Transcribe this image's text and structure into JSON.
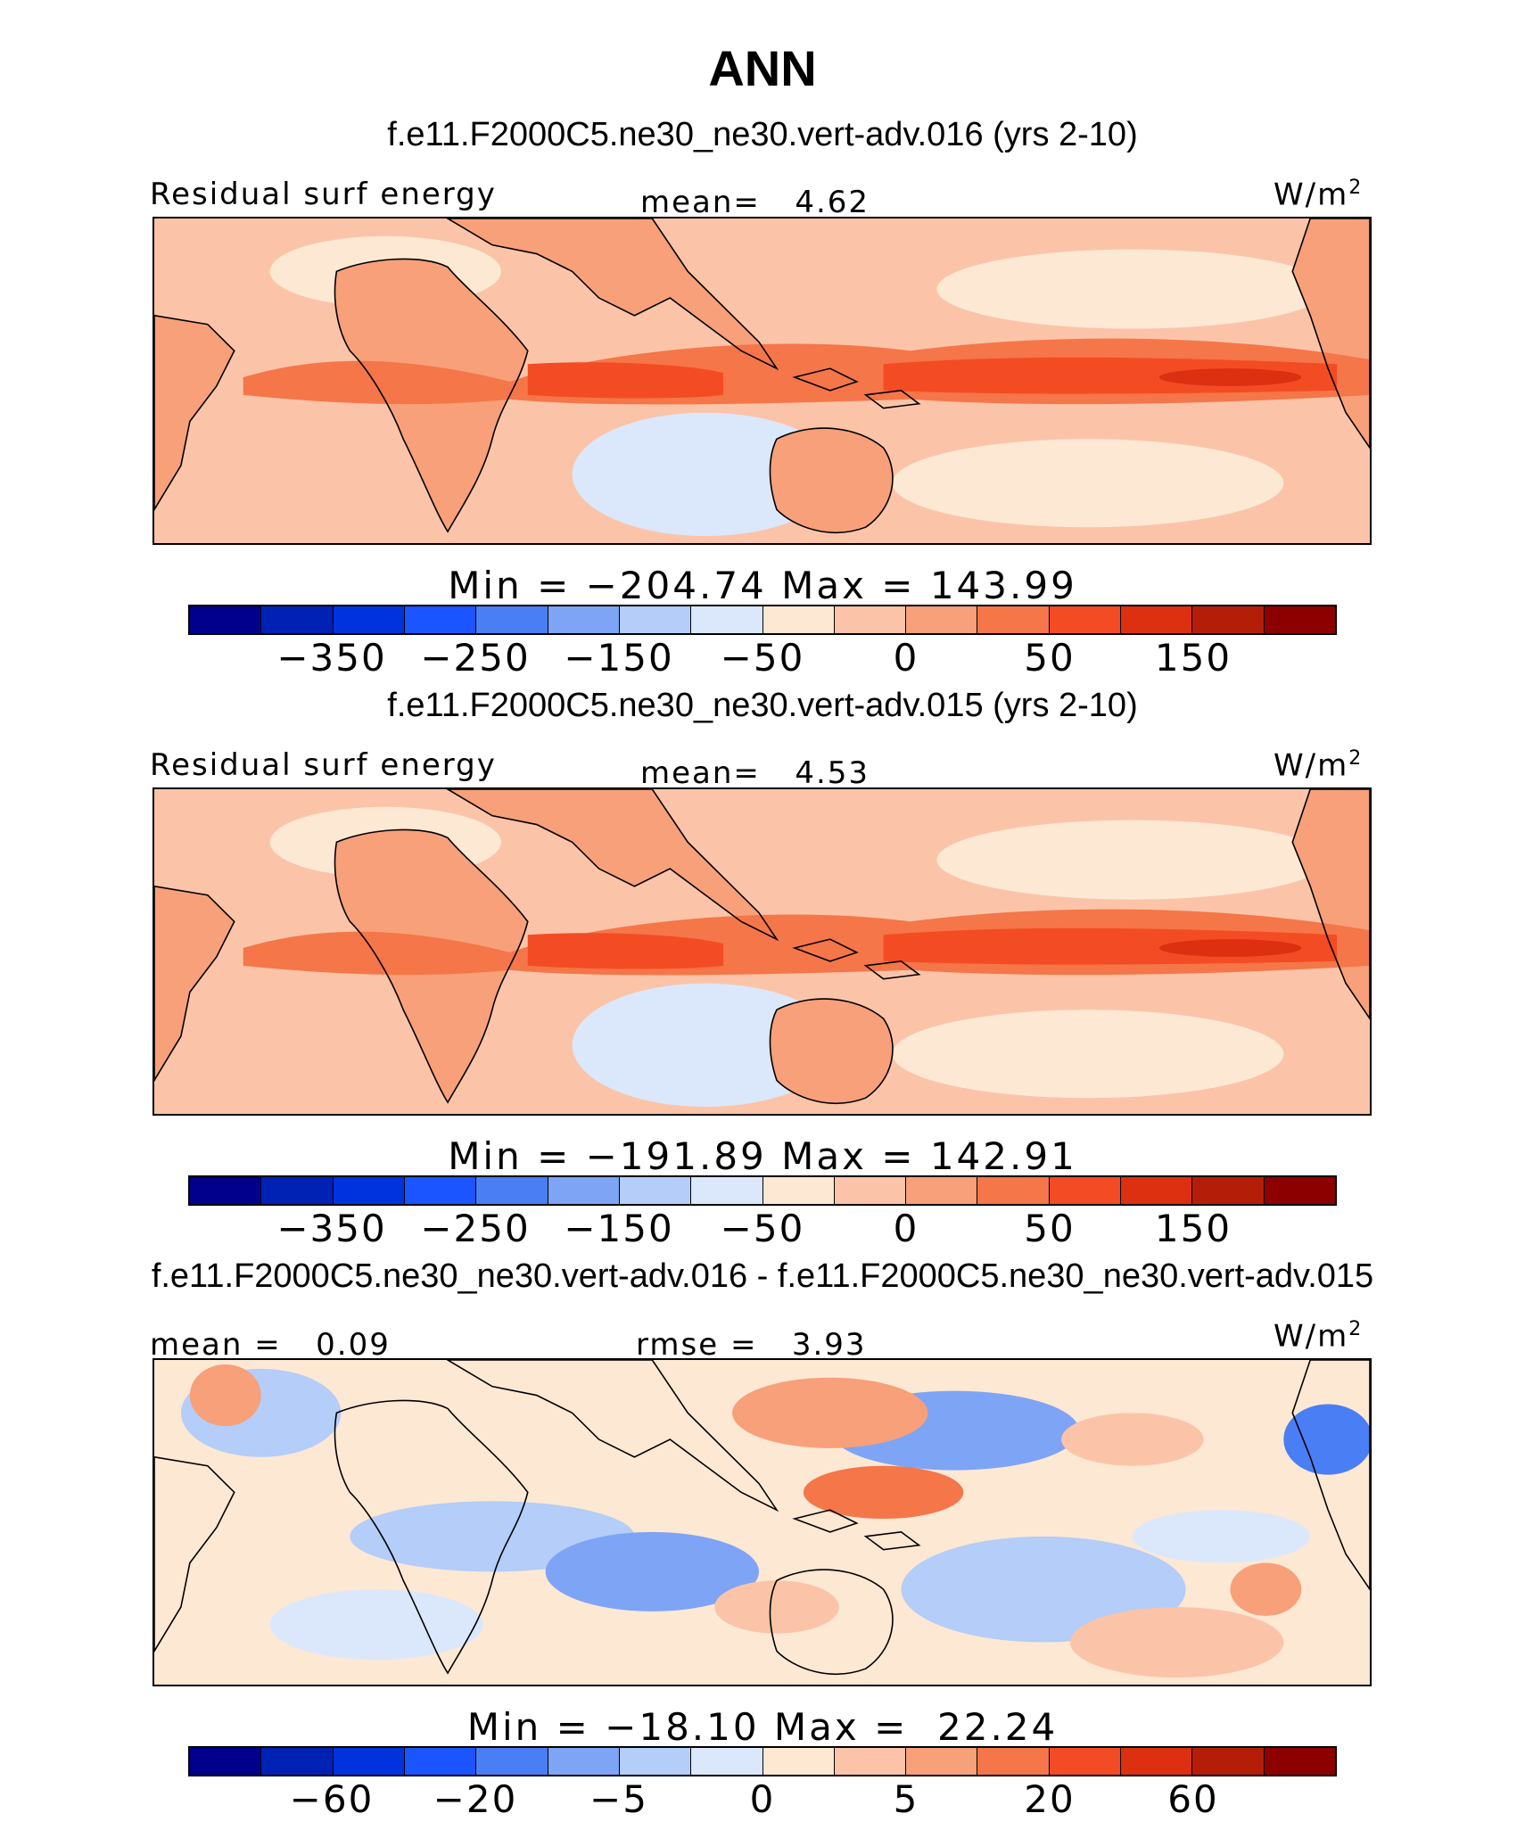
{
  "title": "ANN",
  "panels": [
    {
      "title": "f.e11.F2000C5.ne30_ne30.vert-adv.016 (yrs 2-10)",
      "left_label": "Residual surf energy",
      "center_label": "mean=   4.62",
      "units": "W/m",
      "units_sup": "2",
      "minmax": "Min = −204.74 Max = 143.99",
      "colorbar_ticks": [
        "−350",
        "−250",
        "−150",
        "−50",
        "0",
        "50",
        "150"
      ],
      "map_style": "field"
    },
    {
      "title": "f.e11.F2000C5.ne30_ne30.vert-adv.015 (yrs 2-10)",
      "left_label": "Residual surf energy",
      "center_label": "mean=   4.53",
      "units": "W/m",
      "units_sup": "2",
      "minmax": "Min = −191.89 Max = 142.91",
      "colorbar_ticks": [
        "−350",
        "−250",
        "−150",
        "−50",
        "0",
        "50",
        "150"
      ],
      "map_style": "field"
    },
    {
      "title": "f.e11.F2000C5.ne30_ne30.vert-adv.016 - f.e11.F2000C5.ne30_ne30.vert-adv.015",
      "left_label": "mean =   0.09",
      "center_label": "rmse =   3.93",
      "units": "W/m",
      "units_sup": "2",
      "minmax": "Min = −18.10 Max =  22.24",
      "colorbar_ticks": [
        "−60",
        "−20",
        "−5",
        "0",
        "5",
        "20",
        "60"
      ],
      "map_style": "diff"
    }
  ],
  "colorbar_colors": [
    "#00008c",
    "#0022b4",
    "#0033dd",
    "#1a55ff",
    "#4a7ef5",
    "#7ea4f5",
    "#b4cdf9",
    "#dbe8fb",
    "#fde8d4",
    "#fbc4a8",
    "#f7a07a",
    "#f57648",
    "#f34c24",
    "#dc3010",
    "#b41e08",
    "#8c0000"
  ],
  "palette": {
    "ocean_base": "#fbc4a8",
    "land": "#f7a07a",
    "itcz": "#f57648",
    "itcz_core": "#f34c24",
    "itcz_peak": "#dc3010",
    "cool": "#fde8d4",
    "cold": "#dbe8fb",
    "diff_base": "#fde8d4",
    "diff_blue1": "#dbe8fb",
    "diff_blue2": "#b4cdf9",
    "diff_blue3": "#7ea4f5",
    "diff_blue4": "#4a7ef5",
    "diff_red1": "#fbc4a8",
    "diff_red2": "#f7a07a",
    "diff_red3": "#f57648"
  }
}
